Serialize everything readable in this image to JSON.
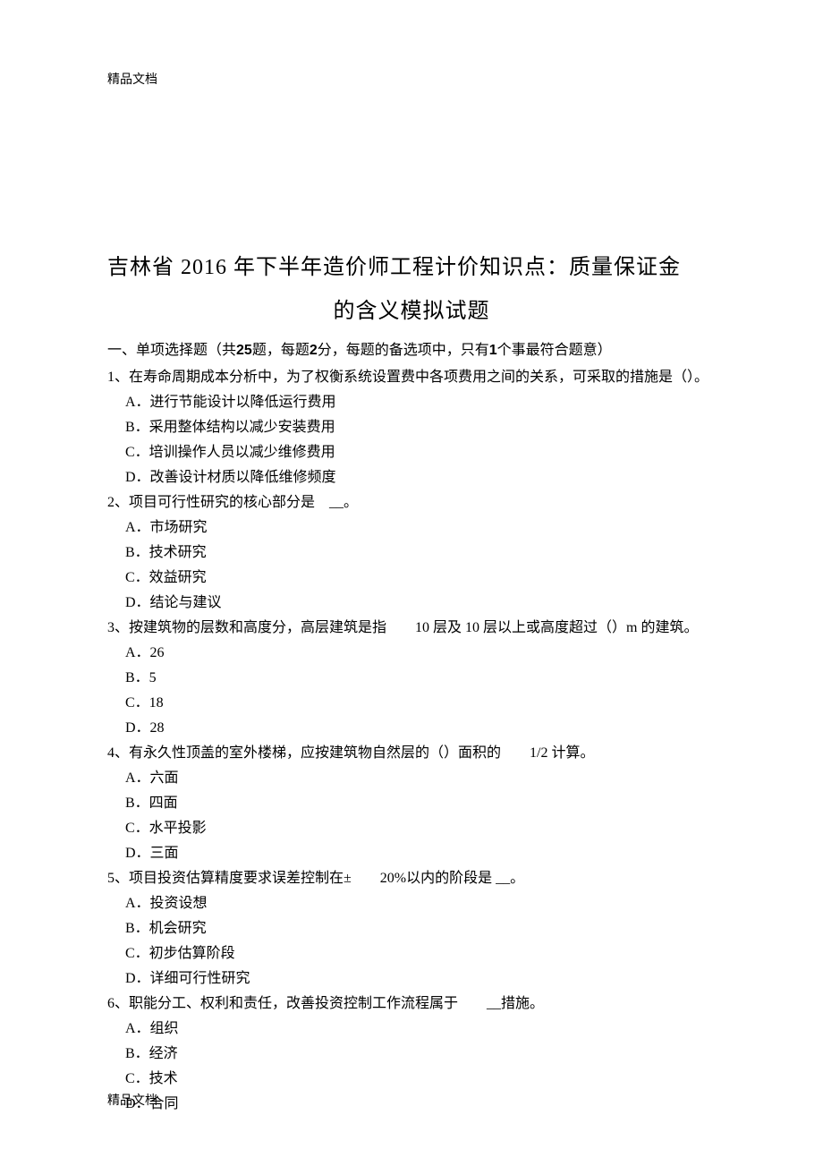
{
  "header_mark": "精品文档",
  "footer_mark": "精品文档",
  "title_line1": "吉林省 2016 年下半年造价师工程计价知识点：质量保证金",
  "title_line2": "的含义模拟试题",
  "section_instruction_prefix": "一、单项选择题（共",
  "section_instruction_q_count": "25",
  "section_instruction_mid1": "题，每题",
  "section_instruction_points": "2",
  "section_instruction_mid2": "分，每题的备选项中，只有",
  "section_instruction_one": "1",
  "section_instruction_suffix": "个事最符合题意）",
  "questions": [
    {
      "stem": "1、在寿命周期成本分析中，为了权衡系统设置费中各项费用之间的关系，可采取的措施是（）。",
      "options": [
        "A．进行节能设计以降低运行费用",
        "B．采用整体结构以减少安装费用",
        "C．培训操作人员以减少维修费用",
        "D．改善设计材质以降低维修频度"
      ]
    },
    {
      "stem": "2、项目可行性研究的核心部分是　__。",
      "options": [
        "A．市场研究",
        "B．技术研究",
        "C．效益研究",
        "D．结论与建议"
      ]
    },
    {
      "stem": "3、按建筑物的层数和高度分，高层建筑是指　　10 层及 10 层以上或高度超过（）m 的建筑。",
      "options": [
        "A．26",
        "B．5",
        "C．18",
        "D．28"
      ]
    },
    {
      "stem": "4、有永久性顶盖的室外楼梯，应按建筑物自然层的（）面积的　　1/2 计算。",
      "options": [
        "A．六面",
        "B．四面",
        "C．水平投影",
        "D．三面"
      ]
    },
    {
      "stem": "5、项目投资估算精度要求误差控制在±　　20%以内的阶段是 __。",
      "options": [
        "A．投资设想",
        "B．机会研究",
        "C．初步估算阶段",
        "D．详细可行性研究"
      ]
    },
    {
      "stem": "6、职能分工、权利和责任，改善投资控制工作流程属于　　__措施。",
      "options": [
        "A．组织",
        "B．经济",
        "C．技术",
        "D．合同"
      ]
    }
  ]
}
